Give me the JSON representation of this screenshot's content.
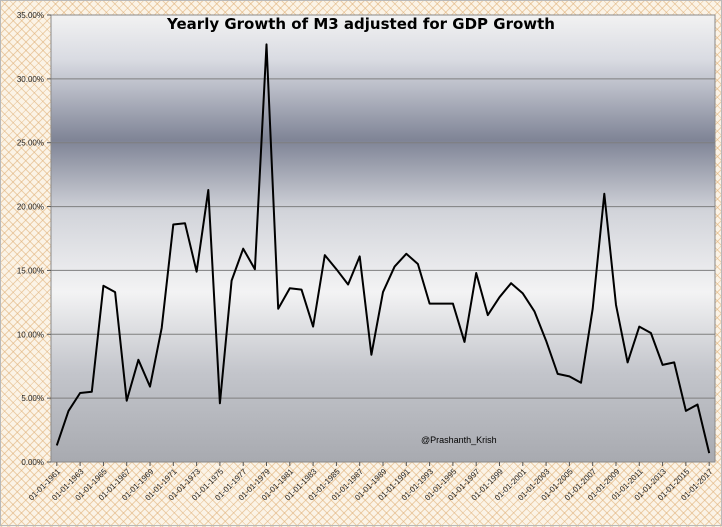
{
  "chart_data": {
    "type": "line",
    "title": "Yearly Growth of M3 adjusted for GDP Growth",
    "annotation": "@Prashanth_Krish",
    "xlabel": "",
    "ylabel": "",
    "ylim": [
      0,
      35
    ],
    "y_ticks": [
      "0.00%",
      "5.00%",
      "10.00%",
      "15.00%",
      "20.00%",
      "25.00%",
      "30.00%",
      "35.00%"
    ],
    "x_ticks": [
      "01-01-1961",
      "01-01-1963",
      "01-01-1965",
      "01-01-1967",
      "01-01-1969",
      "01-01-1971",
      "01-01-1973",
      "01-01-1975",
      "01-01-1977",
      "01-01-1979",
      "01-01-1981",
      "01-01-1983",
      "01-01-1985",
      "01-01-1987",
      "01-01-1989",
      "01-01-1991",
      "01-01-1993",
      "01-01-1995",
      "01-01-1997",
      "01-01-1999",
      "01-01-2001",
      "01-01-2003",
      "01-01-2005",
      "01-01-2007",
      "01-01-2009",
      "01-01-2011",
      "01-01-2013",
      "01-01-2015",
      "01-01-2017"
    ],
    "x": [
      "1961",
      "1962",
      "1963",
      "1964",
      "1965",
      "1966",
      "1967",
      "1968",
      "1969",
      "1970",
      "1971",
      "1972",
      "1973",
      "1974",
      "1975",
      "1976",
      "1977",
      "1978",
      "1979",
      "1980",
      "1981",
      "1982",
      "1983",
      "1984",
      "1985",
      "1986",
      "1987",
      "1988",
      "1989",
      "1990",
      "1991",
      "1992",
      "1993",
      "1994",
      "1995",
      "1996",
      "1997",
      "1998",
      "1999",
      "2000",
      "2001",
      "2002",
      "2003",
      "2004",
      "2005",
      "2006",
      "2007",
      "2008",
      "2009",
      "2010",
      "2011",
      "2012",
      "2013",
      "2014",
      "2015",
      "2016",
      "2017"
    ],
    "values": [
      1.3,
      4.0,
      5.4,
      5.5,
      13.8,
      13.3,
      4.8,
      8.0,
      5.9,
      10.5,
      18.6,
      18.7,
      14.9,
      21.3,
      4.6,
      14.2,
      16.7,
      15.1,
      32.7,
      12.0,
      13.6,
      13.5,
      10.6,
      16.2,
      15.1,
      13.9,
      16.1,
      8.4,
      13.3,
      15.3,
      16.3,
      15.5,
      12.4,
      12.4,
      12.4,
      9.4,
      14.8,
      11.5,
      12.9,
      14.0,
      13.2,
      11.8,
      9.5,
      6.9,
      6.7,
      6.2,
      12.0,
      21.0,
      12.3,
      7.8,
      10.6,
      10.1,
      7.6,
      7.8,
      4.0,
      4.5,
      0.7
    ],
    "grid": true,
    "legend": "none",
    "colors": {
      "line": "#000000",
      "grid": "#7f7f7f"
    }
  }
}
